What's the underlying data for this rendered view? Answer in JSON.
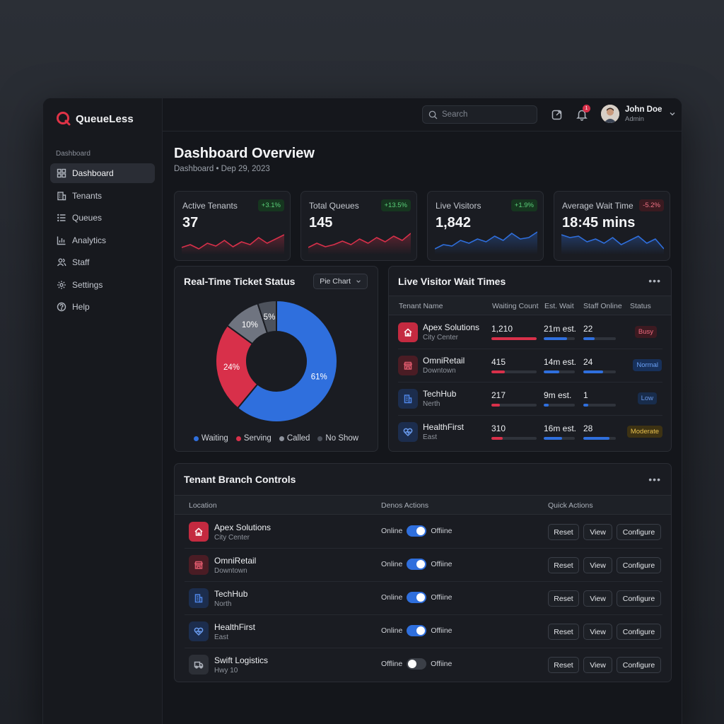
{
  "brand": {
    "name": "QueueLess",
    "accent": "#e03347"
  },
  "sidebar": {
    "heading": "Dashboard",
    "items": [
      {
        "label": "Dashboard",
        "icon": "grid-icon",
        "active": true
      },
      {
        "label": "Tenants",
        "icon": "building-icon"
      },
      {
        "label": "Queues",
        "icon": "list-icon"
      },
      {
        "label": "Analytics",
        "icon": "bar-chart-icon"
      },
      {
        "label": "Staff",
        "icon": "users-icon"
      },
      {
        "label": "Settings",
        "icon": "gear-icon"
      },
      {
        "label": "Help",
        "icon": "help-icon"
      }
    ]
  },
  "topbar": {
    "search_placeholder": "Search",
    "notification_count": "1",
    "user": {
      "name": "John Doe",
      "role": "Admin"
    }
  },
  "page": {
    "title": "Dashboard Overview",
    "breadcrumb": "Dashboard • Dep 29, 2023"
  },
  "stats": [
    {
      "label": "Active Tenants",
      "value": "37",
      "change": "+3.1%",
      "trend": "up",
      "color": "#d8304a"
    },
    {
      "label": "Total Queues",
      "value": "145",
      "change": "+13.5%",
      "trend": "up",
      "color": "#d8304a"
    },
    {
      "label": "Live Visitors",
      "value": "1,842",
      "change": "+1.9%",
      "trend": "up",
      "color": "#2f6fdd"
    },
    {
      "label": "Average Wait Time",
      "value": "18:45 mins",
      "change": "-5.2%",
      "trend": "down",
      "color": "#2f6fdd"
    }
  ],
  "ticket_status": {
    "title": "Real-Time Ticket Status",
    "view_select": "Pie Chart",
    "chart_data": {
      "type": "pie",
      "donut": true,
      "slices": [
        {
          "label": "Waiting",
          "value": 61,
          "color": "#2f6fdd"
        },
        {
          "label": "Serving",
          "value": 24,
          "color": "#d8304a"
        },
        {
          "label": "Called",
          "value": 10,
          "color": "#6f7480"
        },
        {
          "label": "No Show",
          "value": 5,
          "color": "#4d525c"
        }
      ],
      "legend_position": "bottom"
    }
  },
  "wait_times": {
    "title": "Live Visitor Wait Times",
    "columns": [
      "Tenant Name",
      "Waiting Count",
      "Est. Wait",
      "Staff Online",
      "Status"
    ],
    "rows": [
      {
        "name": "Apex Solutions",
        "sub": "City Center",
        "icon": "home-icon",
        "waiting": "1,210",
        "waiting_level": 1.0,
        "wait": "21m est.",
        "wait_level": 0.75,
        "staff": "22",
        "staff_level": 0.35,
        "status": "Busy",
        "status_kind": "busy"
      },
      {
        "name": "OmniRetail",
        "sub": "Downtown",
        "icon": "store-icon",
        "waiting": "415",
        "waiting_level": 0.3,
        "wait": "14m est.",
        "wait_level": 0.5,
        "staff": "24",
        "staff_level": 0.6,
        "status": "Normal",
        "status_kind": "normal"
      },
      {
        "name": "TechHub",
        "sub": "Nerth",
        "icon": "office-icon",
        "waiting": "217",
        "waiting_level": 0.18,
        "wait": "9m est.",
        "wait_level": 0.15,
        "staff": "1",
        "staff_level": 0.15,
        "status": "Low",
        "status_kind": "low"
      },
      {
        "name": "HealthFirst",
        "sub": "East",
        "icon": "heart-icon",
        "waiting": "310",
        "waiting_level": 0.25,
        "wait": "16m est.",
        "wait_level": 0.6,
        "staff": "28",
        "staff_level": 0.8,
        "status": "Moderate",
        "status_kind": "moderate"
      }
    ]
  },
  "branch_controls": {
    "title": "Tenant Branch Controls",
    "columns": [
      "Location",
      "Denos Actions",
      "Quick Actions"
    ],
    "actions": {
      "reset": "Reset",
      "view": "View",
      "configure": "Configure"
    },
    "rows": [
      {
        "name": "Apex Solutions",
        "sub": "City Center",
        "icon": "home-icon",
        "state_label": "Online",
        "toggle_on": true,
        "off_label": "Offiine"
      },
      {
        "name": "OmniRetail",
        "sub": "Downtown",
        "icon": "store-icon",
        "state_label": "Online",
        "toggle_on": true,
        "off_label": "Offiine"
      },
      {
        "name": "TechHub",
        "sub": "North",
        "icon": "office-icon",
        "state_label": "Online",
        "toggle_on": true,
        "off_label": "Offiine"
      },
      {
        "name": "HealthFirst",
        "sub": "East",
        "icon": "heart-icon",
        "state_label": "Online",
        "toggle_on": true,
        "off_label": "Offiine"
      },
      {
        "name": "Swift Logistics",
        "sub": "Hwy 10",
        "icon": "truck-icon",
        "state_label": "Offline",
        "toggle_on": false,
        "off_label": "Offiine"
      }
    ]
  }
}
